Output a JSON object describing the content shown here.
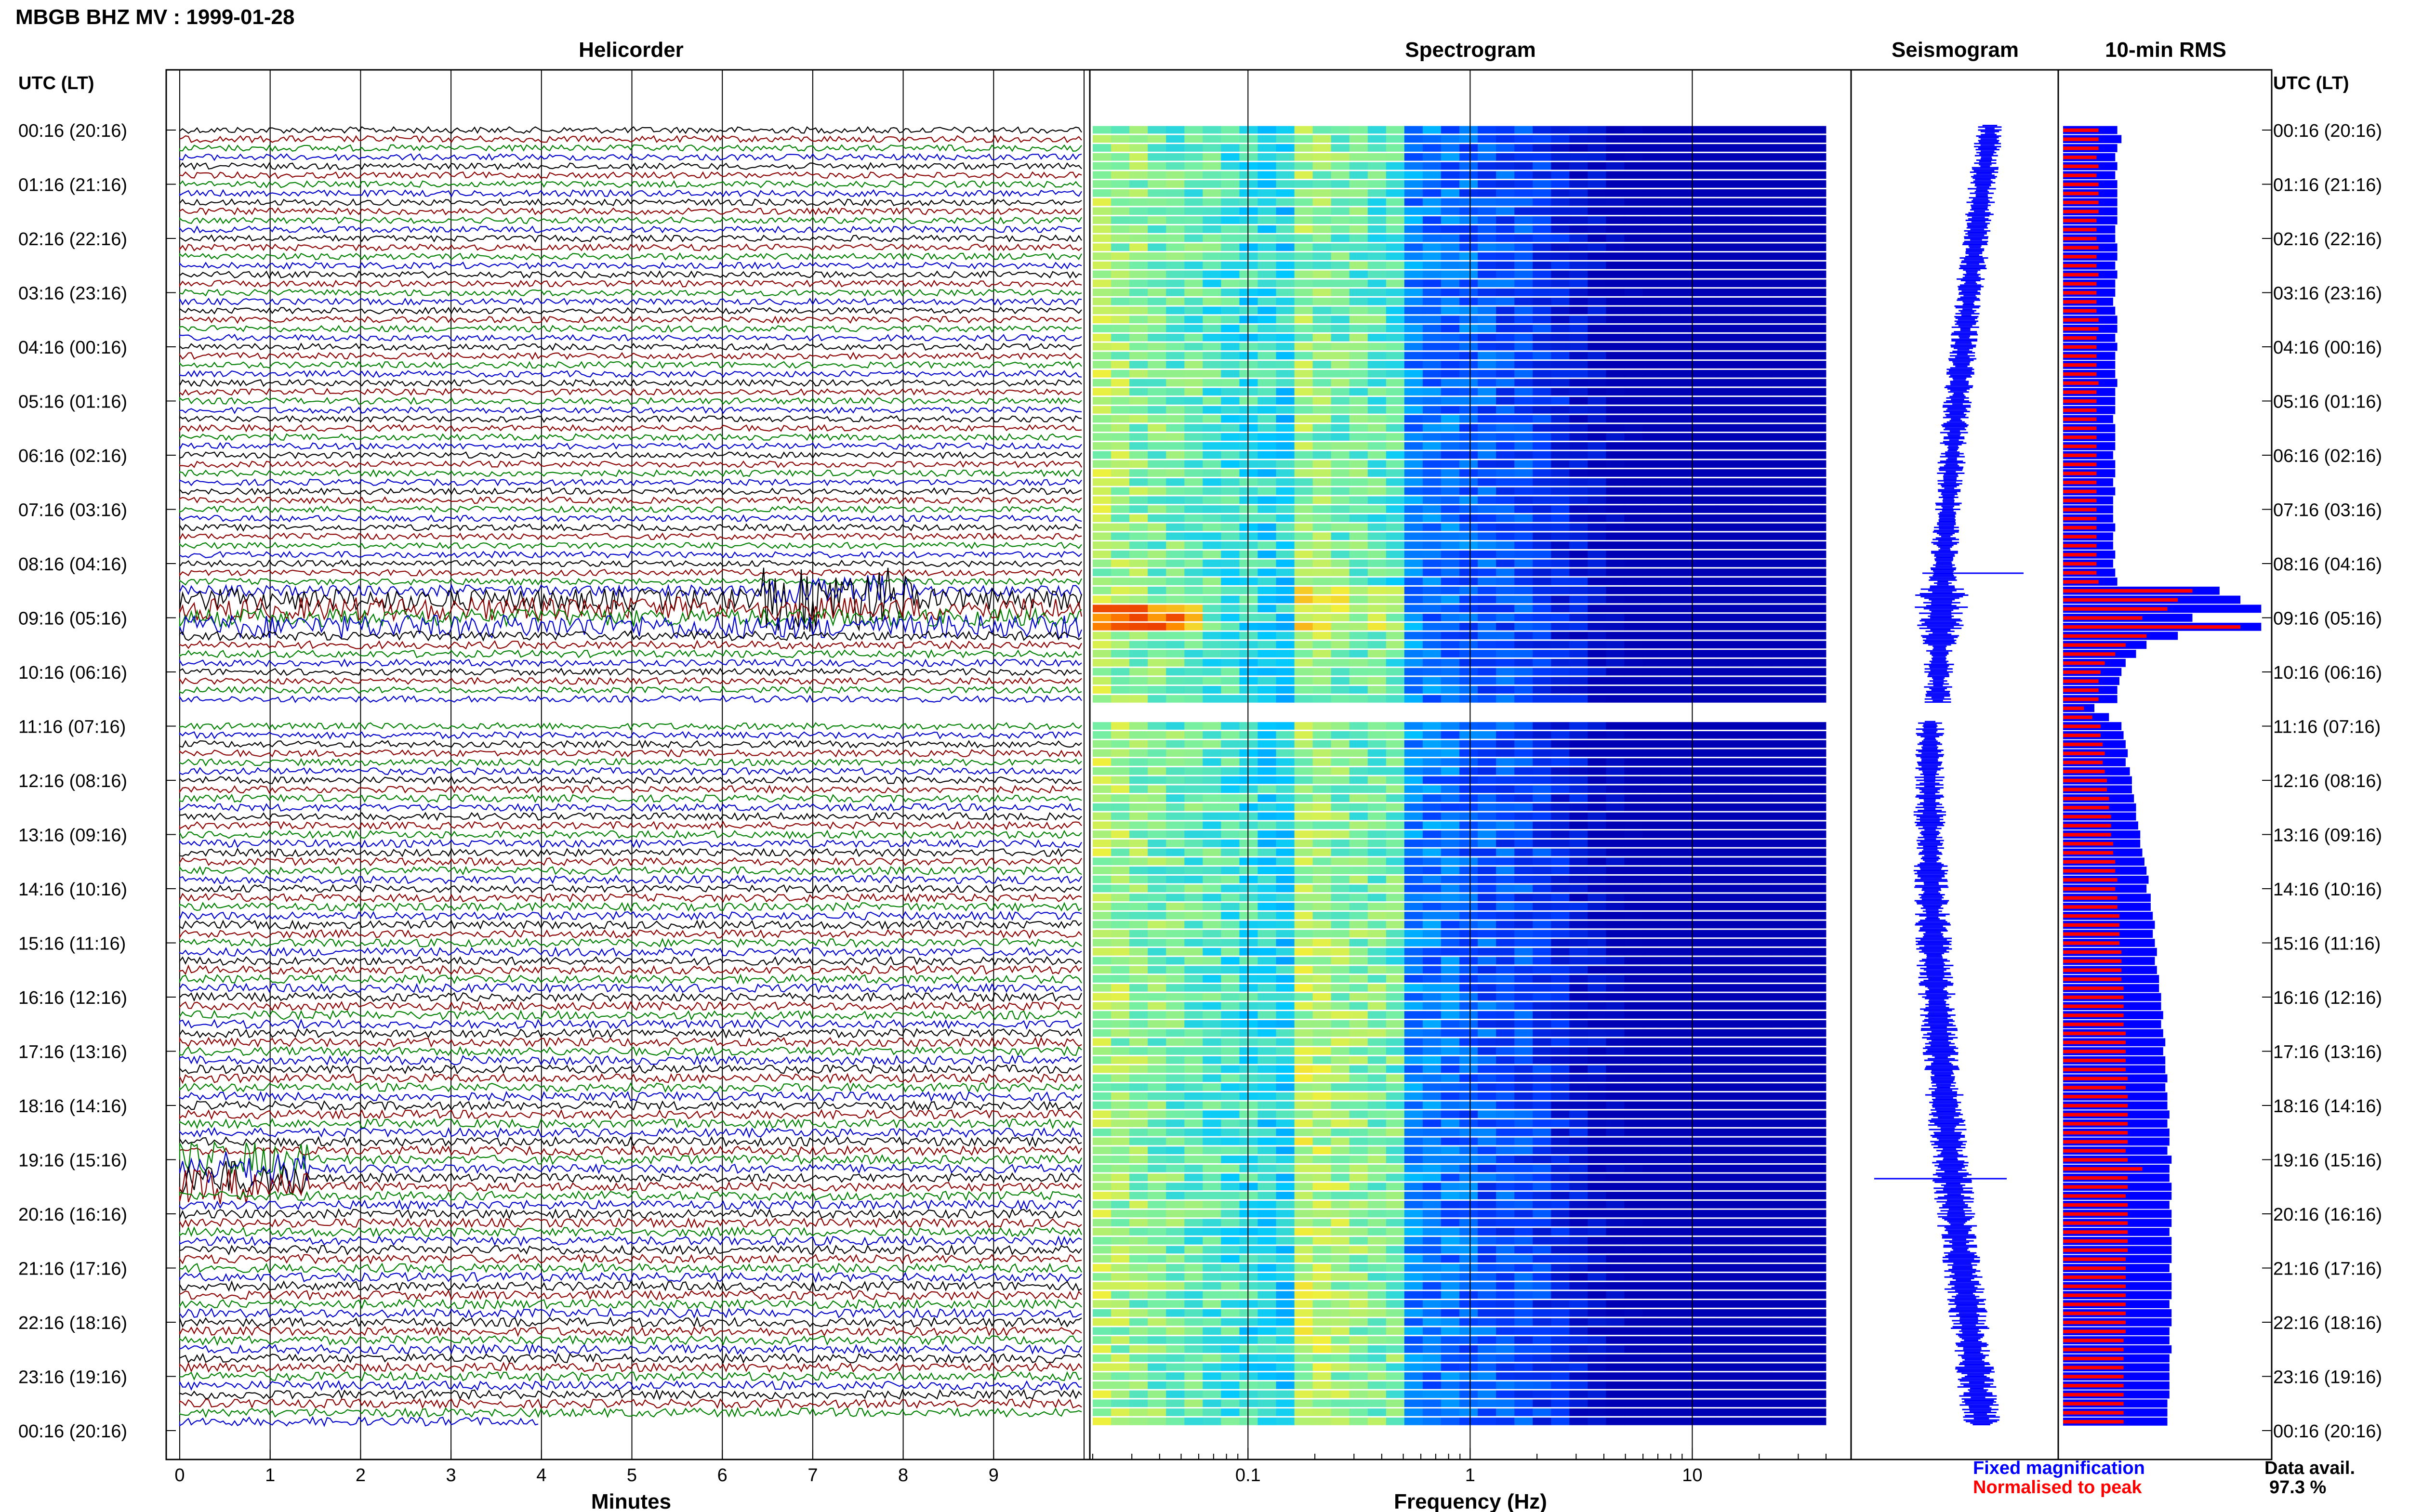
{
  "title": "MBGB BHZ MV : 1999-01-28",
  "panel_titles": {
    "helicorder": "Helicorder",
    "spectrogram": "Spectrogram",
    "seismogram": "Seismogram",
    "rms": "10-min RMS"
  },
  "axis_labels": {
    "utc_left": "UTC (LT)",
    "utc_right": "UTC (LT)",
    "minutes": "Minutes",
    "frequency": "Frequency (Hz)"
  },
  "legend": {
    "fixed": "Fixed magnification",
    "normalised": "Normalised to peak",
    "fixed_color": "#0000ff",
    "normalised_color": "#ff0000"
  },
  "availability": {
    "label": "Data avail.",
    "value": "97.3 %"
  },
  "trace_colors": [
    "#000000",
    "#8b0000",
    "#008000",
    "#0000cd"
  ],
  "colors": {
    "rms_fixed": "#0000ff",
    "rms_normalised": "#ff0000",
    "seismogram": "#0000ff"
  },
  "chart_data": {
    "type": "heatmap",
    "time_labels": [
      "00:16 (20:16)",
      "01:16 (21:16)",
      "02:16 (22:16)",
      "03:16 (23:16)",
      "04:16 (00:16)",
      "05:16 (01:16)",
      "06:16 (02:16)",
      "07:16 (03:16)",
      "08:16 (04:16)",
      "09:16 (05:16)",
      "10:16 (06:16)",
      "11:16 (07:16)",
      "12:16 (08:16)",
      "13:16 (09:16)",
      "14:16 (10:16)",
      "15:16 (11:16)",
      "16:16 (12:16)",
      "17:16 (13:16)",
      "18:16 (14:16)",
      "19:16 (15:16)",
      "20:16 (16:16)",
      "21:16 (17:16)",
      "22:16 (18:16)",
      "23:16 (19:16)",
      "00:16 (20:16)"
    ],
    "minute_ticks": [
      "0",
      "1",
      "2",
      "3",
      "4",
      "5",
      "6",
      "7",
      "8",
      "9"
    ],
    "frequency_ticks": [
      "0.1",
      "1",
      "10"
    ],
    "frequency_range_hz": [
      0.02,
      40
    ],
    "rows_per_hour": 6,
    "data_gap_rows": [
      64,
      65
    ],
    "rms_fixed": [
      0.26,
      0.28,
      0.26,
      0.25,
      0.26,
      0.25,
      0.26,
      0.26,
      0.26,
      0.26,
      0.26,
      0.25,
      0.25,
      0.26,
      0.26,
      0.25,
      0.26,
      0.25,
      0.25,
      0.24,
      0.25,
      0.26,
      0.26,
      0.25,
      0.26,
      0.25,
      0.25,
      0.25,
      0.26,
      0.25,
      0.25,
      0.25,
      0.24,
      0.25,
      0.25,
      0.25,
      0.24,
      0.25,
      0.25,
      0.24,
      0.25,
      0.24,
      0.24,
      0.24,
      0.25,
      0.24,
      0.24,
      0.25,
      0.24,
      0.25,
      0.26,
      0.75,
      0.85,
      0.95,
      0.62,
      0.95,
      0.55,
      0.4,
      0.35,
      0.3,
      0.28,
      0.27,
      0.26,
      0.26,
      0.15,
      0.22,
      0.28,
      0.29,
      0.3,
      0.31,
      0.3,
      0.32,
      0.33,
      0.33,
      0.34,
      0.35,
      0.35,
      0.36,
      0.37,
      0.37,
      0.38,
      0.39,
      0.4,
      0.41,
      0.4,
      0.42,
      0.42,
      0.43,
      0.44,
      0.43,
      0.44,
      0.45,
      0.44,
      0.45,
      0.46,
      0.46,
      0.47,
      0.47,
      0.48,
      0.47,
      0.48,
      0.49,
      0.48,
      0.49,
      0.49,
      0.5,
      0.49,
      0.5,
      0.5,
      0.51,
      0.5,
      0.51,
      0.51,
      0.5,
      0.52,
      0.51,
      0.51,
      0.52,
      0.52,
      0.51,
      0.52,
      0.52,
      0.51,
      0.52,
      0.52,
      0.52,
      0.51,
      0.52,
      0.52,
      0.52,
      0.51,
      0.52,
      0.52,
      0.51,
      0.51,
      0.52,
      0.51,
      0.51,
      0.51,
      0.51,
      0.51,
      0.5,
      0.5,
      0.5
    ],
    "rms_normalised": [
      0.17,
      0.17,
      0.17,
      0.16,
      0.17,
      0.16,
      0.17,
      0.17,
      0.17,
      0.17,
      0.16,
      0.16,
      0.16,
      0.17,
      0.16,
      0.16,
      0.17,
      0.16,
      0.16,
      0.16,
      0.16,
      0.17,
      0.17,
      0.16,
      0.16,
      0.16,
      0.16,
      0.16,
      0.17,
      0.16,
      0.16,
      0.16,
      0.16,
      0.16,
      0.16,
      0.16,
      0.16,
      0.16,
      0.16,
      0.16,
      0.16,
      0.16,
      0.16,
      0.16,
      0.16,
      0.16,
      0.16,
      0.16,
      0.16,
      0.16,
      0.17,
      0.62,
      0.55,
      0.5,
      0.38,
      0.85,
      0.4,
      0.3,
      0.25,
      0.2,
      0.18,
      0.17,
      0.17,
      0.17,
      0.1,
      0.14,
      0.18,
      0.18,
      0.19,
      0.2,
      0.19,
      0.2,
      0.21,
      0.21,
      0.22,
      0.22,
      0.23,
      0.23,
      0.23,
      0.24,
      0.24,
      0.25,
      0.25,
      0.26,
      0.25,
      0.26,
      0.26,
      0.27,
      0.27,
      0.27,
      0.27,
      0.28,
      0.28,
      0.28,
      0.28,
      0.29,
      0.29,
      0.29,
      0.29,
      0.29,
      0.3,
      0.3,
      0.3,
      0.3,
      0.3,
      0.31,
      0.3,
      0.31,
      0.31,
      0.31,
      0.31,
      0.31,
      0.31,
      0.3,
      0.31,
      0.38,
      0.31,
      0.31,
      0.3,
      0.31,
      0.31,
      0.31,
      0.31,
      0.31,
      0.31,
      0.3,
      0.3,
      0.3,
      0.3,
      0.3,
      0.3,
      0.3,
      0.3,
      0.3,
      0.29,
      0.29,
      0.29,
      0.29,
      0.29,
      0.29,
      0.29,
      0.29,
      0.29,
      0.29
    ]
  }
}
